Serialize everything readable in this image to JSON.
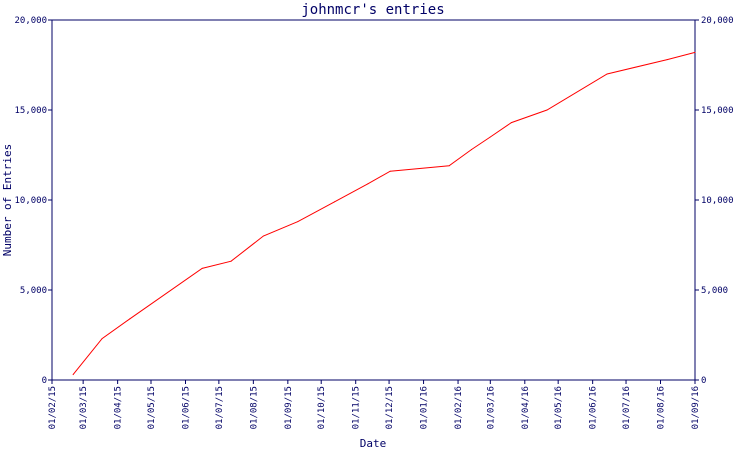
{
  "chart_data": {
    "type": "line",
    "title": "johnmcr's entries",
    "xlabel": "Date",
    "ylabel": "Number of Entries",
    "xlim": [
      "01/02/15",
      "01/09/16"
    ],
    "ylim": [
      0,
      20000
    ],
    "x_tick_labels": [
      "01/02/15",
      "01/03/15",
      "01/04/15",
      "01/05/15",
      "01/06/15",
      "01/07/15",
      "01/08/15",
      "01/09/15",
      "01/10/15",
      "01/11/15",
      "01/12/15",
      "01/01/16",
      "01/02/16",
      "01/03/16",
      "01/04/16",
      "01/05/16",
      "01/06/16",
      "01/07/16",
      "01/08/16",
      "01/09/16"
    ],
    "y_tick_labels": [
      "0",
      "5,000",
      "10,000",
      "15,000",
      "20,000"
    ],
    "y_tick_values": [
      0,
      5000,
      10000,
      15000,
      20000
    ],
    "grid": false,
    "line_color": "#ff0000",
    "axis_color": "#000066",
    "series": [
      {
        "x": [
          "2015-02-20",
          "2015-03-18",
          "2015-04-12",
          "2015-06-16",
          "2015-07-12",
          "2015-08-10",
          "2015-09-10",
          "2015-10-13",
          "2015-11-12",
          "2015-12-02",
          "2016-01-24",
          "2016-02-13",
          "2016-03-01",
          "2016-03-20",
          "2016-04-21",
          "2016-06-14",
          "2016-08-07",
          "2016-09-01"
        ],
        "y": [
          300,
          2300,
          3400,
          6200,
          6600,
          8000,
          8800,
          9900,
          10900,
          11600,
          11900,
          12800,
          13500,
          14300,
          15000,
          17000,
          17800,
          18200
        ]
      }
    ]
  }
}
